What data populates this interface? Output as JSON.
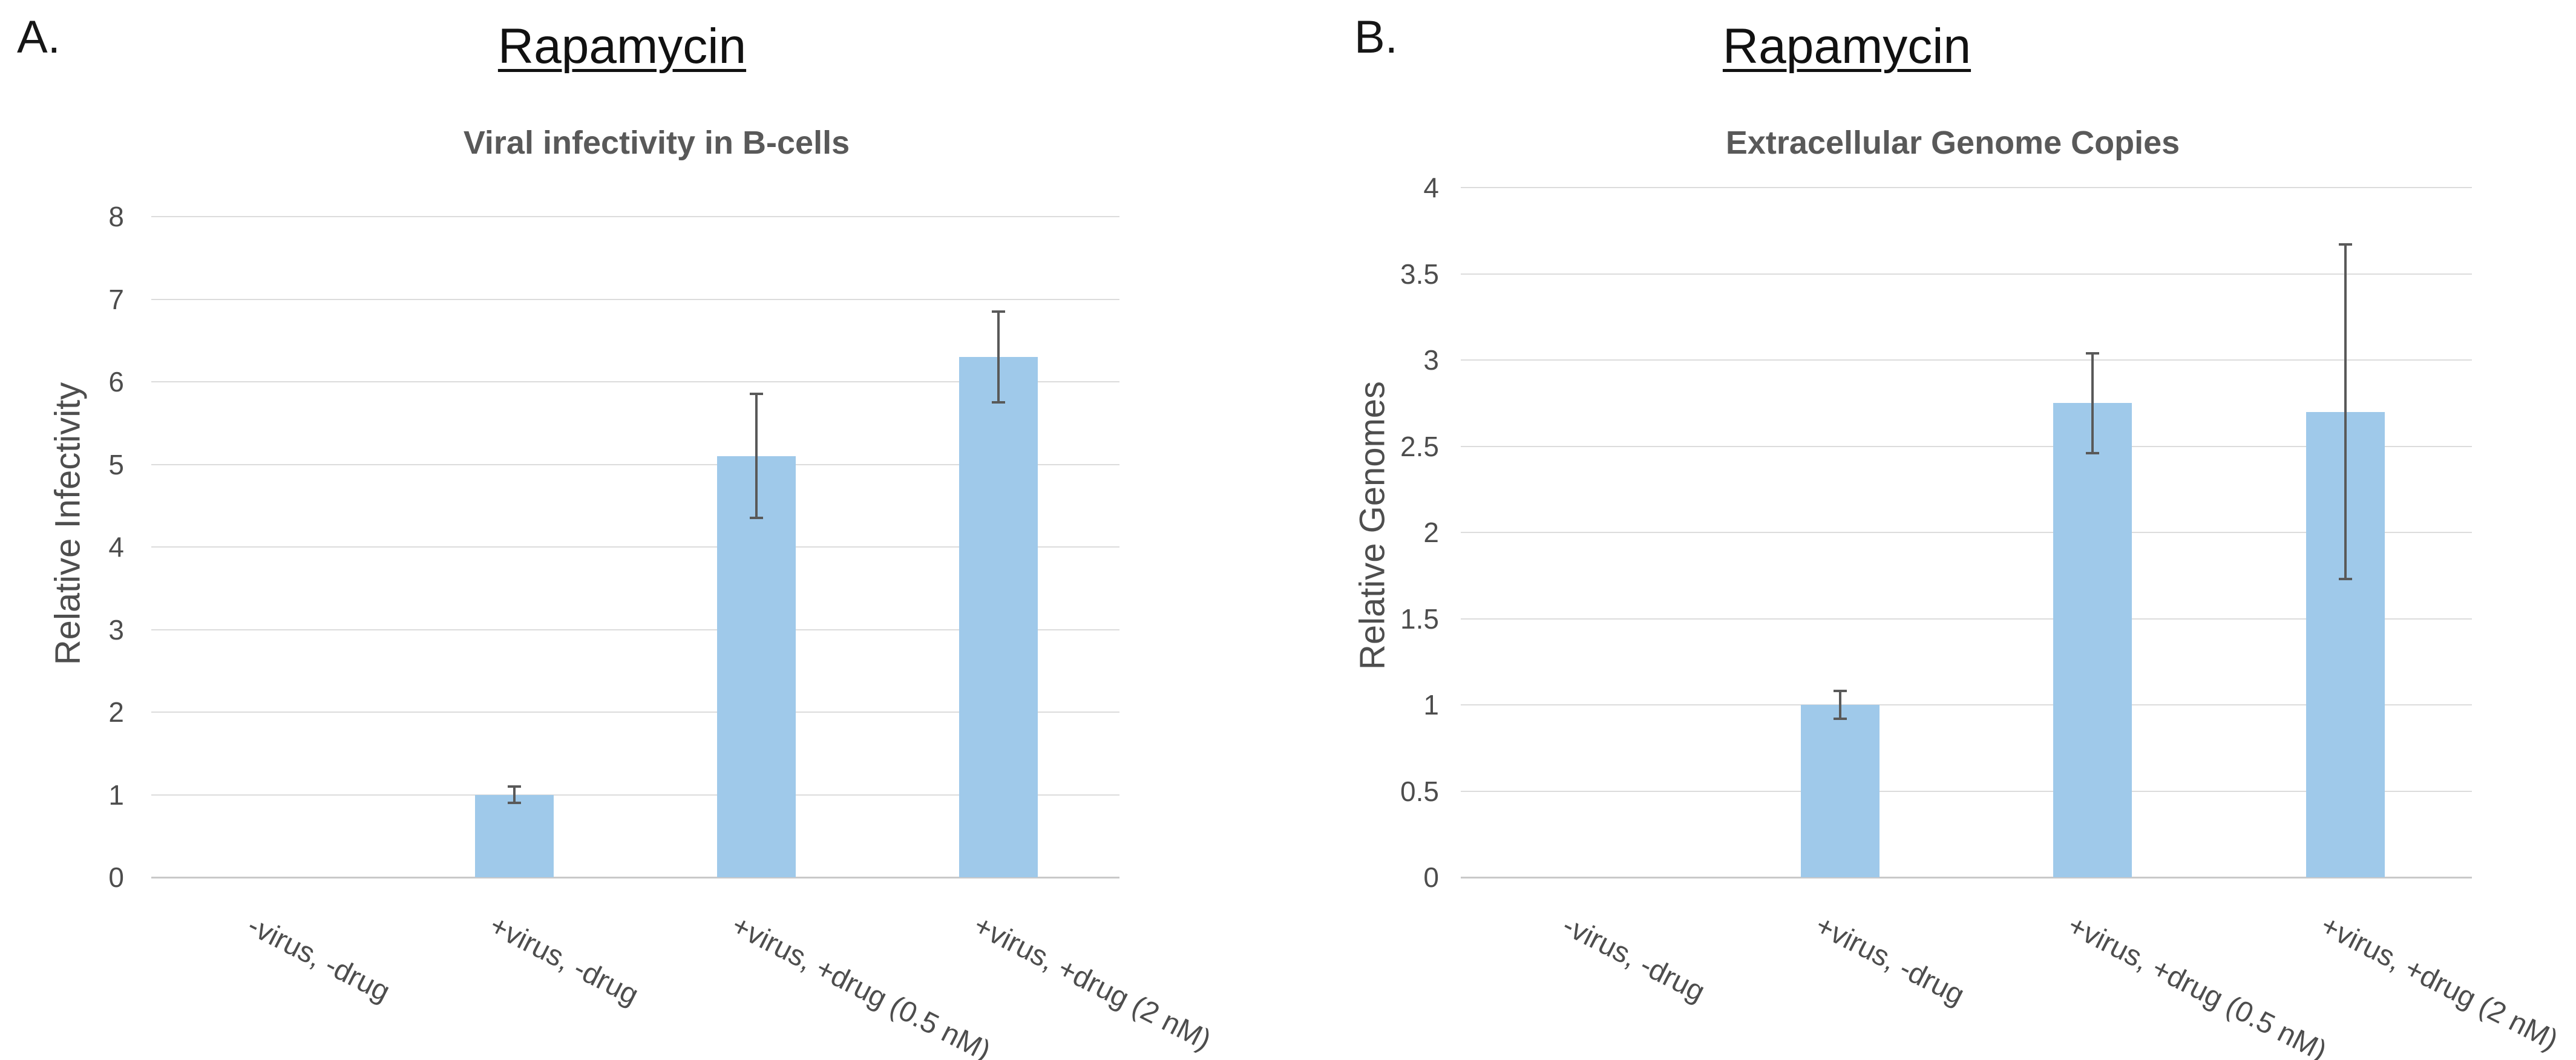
{
  "page": {
    "background": "#ffffff"
  },
  "colors": {
    "bar_fill": "#9fc9ea",
    "error_bar": "#595959",
    "gridline": "#dcdcdc",
    "axis_line": "#c9c9c9",
    "title_text": "#111111",
    "subtitle_text": "#595959",
    "axis_text": "#4d4d4d"
  },
  "chart_data": [
    {
      "type": "bar",
      "panel_label": "A.",
      "title": "Rapamycin",
      "subtitle": "Viral infectivity in B-cells",
      "ylabel": "Relative Infectivity",
      "xlabel": "",
      "categories": [
        "-virus, -drug",
        "+virus, -drug",
        "+virus, +drug (0.5 nM)",
        "+virus, +drug (2 nM)"
      ],
      "values": [
        0,
        1.0,
        5.1,
        6.3
      ],
      "error_bars": [
        null,
        0.1,
        0.75,
        0.55
      ],
      "ylim": [
        0,
        8
      ],
      "yticks": [
        "0",
        "1",
        "2",
        "3",
        "4",
        "5",
        "6",
        "7",
        "8"
      ],
      "grid": true,
      "legend": null
    },
    {
      "type": "bar",
      "panel_label": "B.",
      "title": "Rapamycin",
      "subtitle": "Extracellular Genome Copies",
      "ylabel": "Relative Genomes",
      "xlabel": "",
      "categories": [
        "-virus, -drug",
        "+virus, -drug",
        "+virus, +drug (0.5 nM)",
        "+virus, +drug (2 nM)"
      ],
      "values": [
        0,
        1.0,
        2.75,
        2.7
      ],
      "error_bars": [
        null,
        0.08,
        0.29,
        0.97
      ],
      "ylim": [
        0,
        4
      ],
      "yticks": [
        "0",
        "0.5",
        "1",
        "1.5",
        "2",
        "2.5",
        "3",
        "3.5",
        "4"
      ],
      "grid": true,
      "legend": null
    }
  ]
}
